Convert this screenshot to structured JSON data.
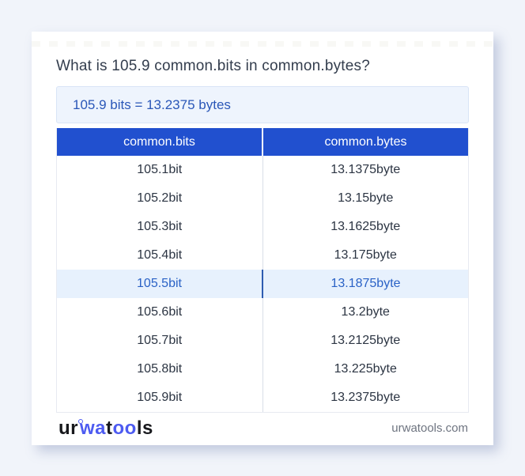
{
  "page": {
    "title": "What is 105.9 common.bits in common.bytes?",
    "result_text": "105.9 bits = 13.2375 bytes"
  },
  "table": {
    "columns": [
      "common.bits",
      "common.bytes"
    ],
    "rows": [
      {
        "bits": "105.1bit",
        "bytes": "13.1375byte",
        "highlight": false
      },
      {
        "bits": "105.2bit",
        "bytes": "13.15byte",
        "highlight": false
      },
      {
        "bits": "105.3bit",
        "bytes": "13.1625byte",
        "highlight": false
      },
      {
        "bits": "105.4bit",
        "bytes": "13.175byte",
        "highlight": false
      },
      {
        "bits": "105.5bit",
        "bytes": "13.1875byte",
        "highlight": true
      },
      {
        "bits": "105.6bit",
        "bytes": "13.2byte",
        "highlight": false
      },
      {
        "bits": "105.7bit",
        "bytes": "13.2125byte",
        "highlight": false
      },
      {
        "bits": "105.8bit",
        "bytes": "13.225byte",
        "highlight": false
      },
      {
        "bits": "105.9bit",
        "bytes": "13.2375byte",
        "highlight": false
      }
    ]
  },
  "footer": {
    "logo_parts": [
      {
        "text": "ur",
        "color": "dark"
      },
      {
        "ring": true
      },
      {
        "text": "wa",
        "color": "blue"
      },
      {
        "text": "t",
        "color": "dark"
      },
      {
        "text": "oo",
        "color": "blue"
      },
      {
        "text": "ls",
        "color": "dark"
      }
    ],
    "site": "urwatools.com"
  },
  "colors": {
    "page_background": "#f1f4fa",
    "card_background": "#ffffff",
    "title_text": "#333d4d",
    "result_background": "#eef4fd",
    "result_border": "#d9e4f6",
    "result_text": "#2a57b8",
    "table_header_background": "#2150cf",
    "table_header_text": "#ffffff",
    "cell_text": "#2c3543",
    "column_divider": "#d9dee8",
    "highlight_row_background": "#e7f1fd",
    "highlight_row_text": "#2a62c6",
    "highlight_divider": "#2e5cb0",
    "logo_dark": "#17181c",
    "logo_blue": "#4d5bf1",
    "site_text": "#6e7480"
  }
}
